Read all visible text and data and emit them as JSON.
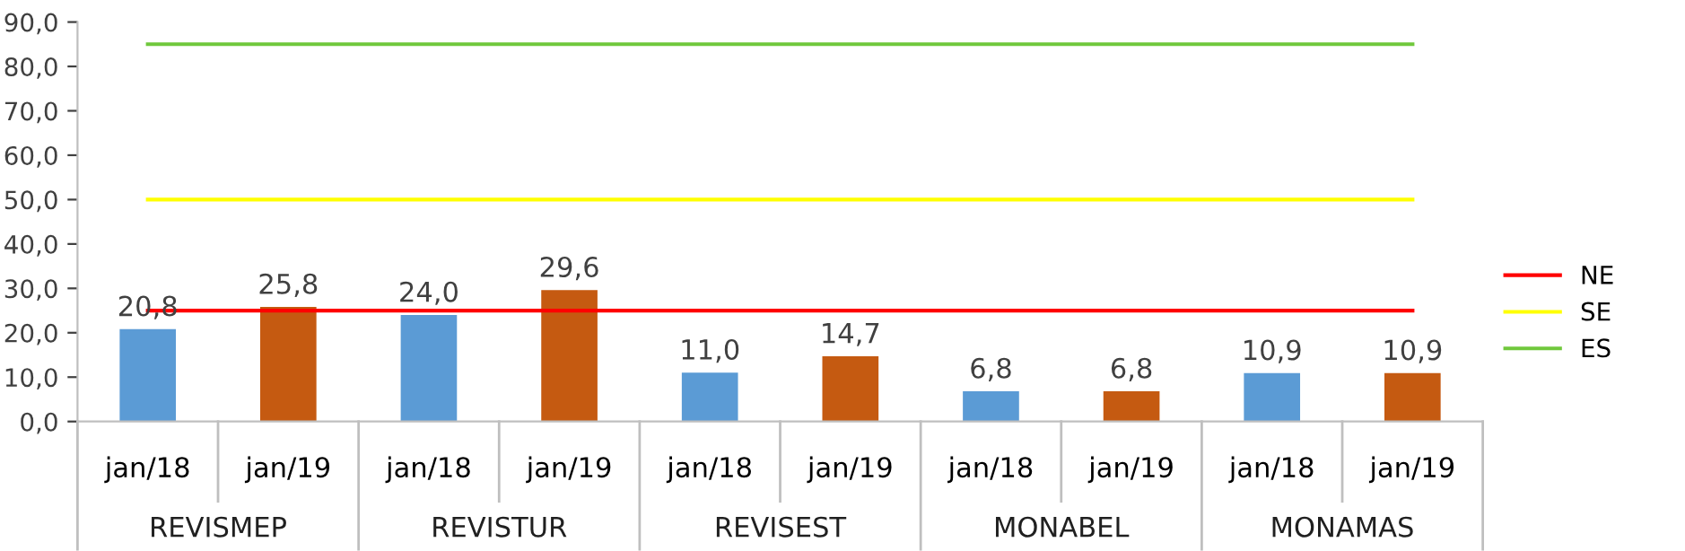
{
  "chart_data": {
    "type": "bar",
    "categories": [
      "jan/18",
      "jan/19",
      "jan/18",
      "jan/19",
      "jan/18",
      "jan/19",
      "jan/18",
      "jan/19",
      "jan/18",
      "jan/19"
    ],
    "annotations": [
      "REVISMEP",
      "REVISTUR",
      "REVISEST",
      "MONABEL",
      "MONAMAS"
    ],
    "series": [
      {
        "colors": [
          "#5b9bd5",
          "#c55a11",
          "#5b9bd5",
          "#c55a11",
          "#5b9bd5",
          "#c55a11",
          "#5b9bd5",
          "#c55a11",
          "#5b9bd5",
          "#c55a11"
        ],
        "values": [
          20.8,
          25.8,
          24.0,
          29.6,
          11.0,
          14.7,
          6.8,
          6.8,
          10.9,
          10.9
        ],
        "value_labels": [
          "20,8",
          "25,8",
          "24,0",
          "29,6",
          "11,0",
          "14,7",
          "6,8",
          "6,8",
          "10,9",
          "10,9"
        ]
      },
      {
        "type": "line",
        "name": "NE",
        "color": "#ff0000",
        "values": [
          25,
          25,
          25,
          25,
          25,
          25,
          25,
          25,
          25,
          25
        ]
      },
      {
        "type": "line",
        "name": "SE",
        "color": "#ffff00",
        "values": [
          50,
          50,
          50,
          50,
          50,
          50,
          50,
          50,
          50,
          50
        ]
      },
      {
        "type": "line",
        "name": "ES",
        "color": "#70c83c",
        "values": [
          85,
          85,
          85,
          85,
          85,
          85,
          85,
          85,
          85,
          85
        ]
      }
    ],
    "ylim": [
      0,
      90
    ],
    "yticks": [
      {
        "value": 0,
        "label": "0,0"
      },
      {
        "value": 10,
        "label": "10,0"
      },
      {
        "value": 20,
        "label": "20,0"
      },
      {
        "value": 30,
        "label": "30,0"
      },
      {
        "value": 40,
        "label": "40,0"
      },
      {
        "value": 50,
        "label": "50,0"
      },
      {
        "value": 60,
        "label": "60,0"
      },
      {
        "value": 70,
        "label": "70,0"
      },
      {
        "value": 80,
        "label": "80,0"
      },
      {
        "value": 90,
        "label": "90,0"
      }
    ],
    "legend": "right",
    "grid": false
  }
}
